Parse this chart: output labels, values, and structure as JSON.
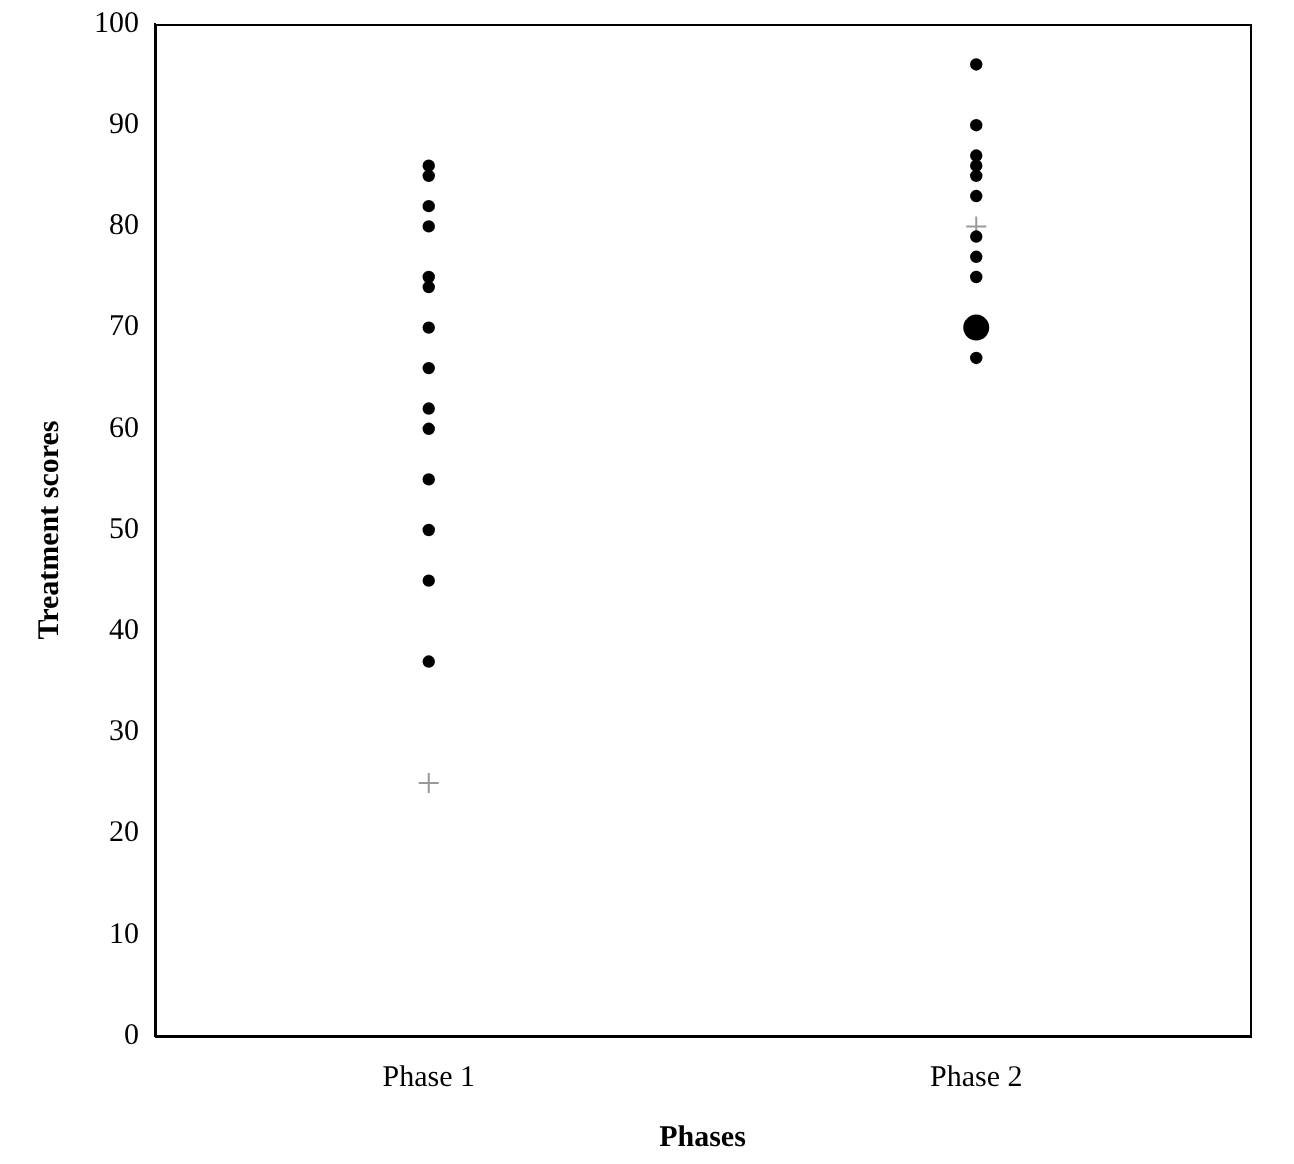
{
  "chart_data": {
    "type": "scatter",
    "xlabel": "Phases",
    "ylabel": "Treatment scores",
    "categories": [
      "Phase 1",
      "Phase 2"
    ],
    "ylim": [
      0,
      100
    ],
    "yticks": [
      0,
      10,
      20,
      30,
      40,
      50,
      60,
      70,
      80,
      90,
      100
    ],
    "grid": false,
    "legend": false,
    "series": [
      {
        "color": "#000000",
        "marker": "circle",
        "x": [
          "Phase 1",
          "Phase 1",
          "Phase 1",
          "Phase 1",
          "Phase 1",
          "Phase 1",
          "Phase 1",
          "Phase 1",
          "Phase 1",
          "Phase 1",
          "Phase 1",
          "Phase 1",
          "Phase 1",
          "Phase 1",
          "Phase 2",
          "Phase 2",
          "Phase 2",
          "Phase 2",
          "Phase 2",
          "Phase 2",
          "Phase 2",
          "Phase 2",
          "Phase 2",
          "Phase 2"
        ],
        "values": [
          86,
          85,
          82,
          80,
          75,
          74,
          70,
          66,
          62,
          60,
          55,
          50,
          45,
          37,
          96,
          90,
          87,
          86,
          85,
          83,
          79,
          77,
          75,
          67
        ]
      },
      {
        "type": "bubble",
        "color": "#000000",
        "marker": "circle",
        "x": [
          "Phase 2"
        ],
        "values": [
          70
        ],
        "sizes": [
          1
        ]
      },
      {
        "color": "#999999",
        "marker": "cross",
        "x": [
          "Phase 1",
          "Phase 2"
        ],
        "values": [
          25,
          80
        ]
      }
    ]
  }
}
